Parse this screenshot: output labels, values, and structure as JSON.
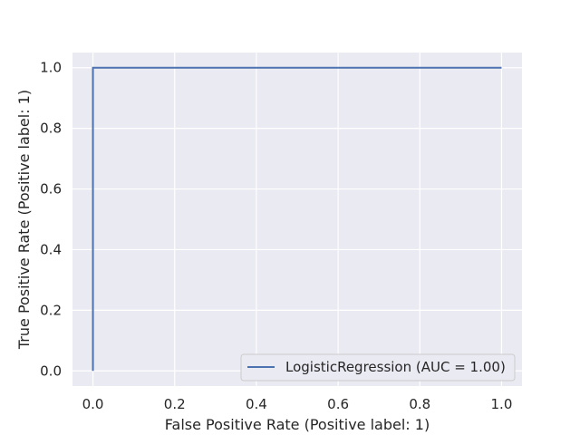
{
  "chart_data": {
    "type": "line",
    "title": "",
    "xlabel": "False Positive Rate (Positive label: 1)",
    "ylabel": "True Positive Rate (Positive label: 1)",
    "xlim": [
      -0.05,
      1.05
    ],
    "ylim": [
      -0.05,
      1.05
    ],
    "xticks": [
      0.0,
      0.2,
      0.4,
      0.6,
      0.8,
      1.0
    ],
    "yticks": [
      0.0,
      0.2,
      0.4,
      0.6,
      0.8,
      1.0
    ],
    "xtick_labels": [
      "0.0",
      "0.2",
      "0.4",
      "0.6",
      "0.8",
      "1.0"
    ],
    "ytick_labels": [
      "0.0",
      "0.2",
      "0.4",
      "0.6",
      "0.8",
      "1.0"
    ],
    "grid": true,
    "legend_position": "lower-right",
    "series": [
      {
        "name": "LogisticRegression (AUC = 1.00)",
        "color": "#4c72b0",
        "x": [
          0.0,
          0.0,
          1.0
        ],
        "y": [
          0.0,
          1.0,
          1.0
        ]
      }
    ],
    "background_color": "#eaeaf2",
    "grid_color": "#ffffff"
  }
}
